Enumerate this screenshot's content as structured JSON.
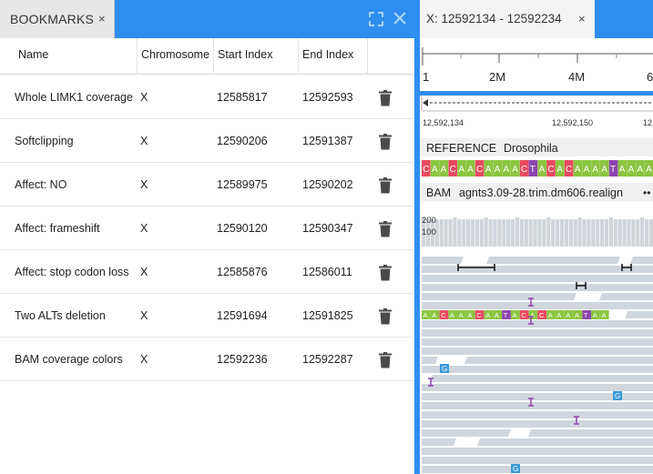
{
  "bookmarks_panel": {
    "tab_label": "BOOKMARKS",
    "tab_close": "×",
    "expand_icon": "fullscreen-icon",
    "close_icon": "close-icon",
    "columns": [
      "Name",
      "Chromosome",
      "Start Index",
      "End Index"
    ],
    "rows": [
      {
        "name": "Whole LIMK1 coverage",
        "chromosome": "X",
        "start": "12585817",
        "end": "12592593"
      },
      {
        "name": "Softclipping",
        "chromosome": "X",
        "start": "12590206",
        "end": "12591387"
      },
      {
        "name": "Affect: NO",
        "chromosome": "X",
        "start": "12589975",
        "end": "12590202"
      },
      {
        "name": "Affect: frameshift",
        "chromosome": "X",
        "start": "12590120",
        "end": "12590347"
      },
      {
        "name": "Affect: stop codon loss",
        "chromosome": "X",
        "start": "12585876",
        "end": "12586011"
      },
      {
        "name": "Two ALTs deletion",
        "chromosome": "X",
        "start": "12591694",
        "end": "12591825"
      },
      {
        "name": "BAM coverage colors",
        "chromosome": "X",
        "start": "12592236",
        "end": "12592287"
      }
    ],
    "row_action_icon": "trash-icon"
  },
  "browser_panel": {
    "tab_label": "X: 12592134 - 12592234",
    "tab_close": "×",
    "ruler_labels": [
      "1",
      "2M",
      "4M",
      "6"
    ],
    "zoom_labels": [
      "12,592,134",
      "12,592,150",
      "12"
    ],
    "reference_label": "REFERENCE",
    "reference_name": "Drosophila",
    "reference_sequence": "CAACAACAAAACTACACAAAATAAAA",
    "bam_label": "BAM",
    "bam_name": "agnts3.09-28.trim.dm606.realign",
    "bam_menu": "••",
    "coverage_labels": [
      "200",
      "100"
    ],
    "read_sequence": "AACAAACAATACACAAAATAA",
    "mismatch_letter": "G",
    "colors": {
      "accent": "#2e8ef0",
      "A": "#8bc53f",
      "C": "#e84a5f",
      "T": "#8e44ad",
      "G": "#f5a623",
      "read": "#cfd6dd"
    }
  }
}
